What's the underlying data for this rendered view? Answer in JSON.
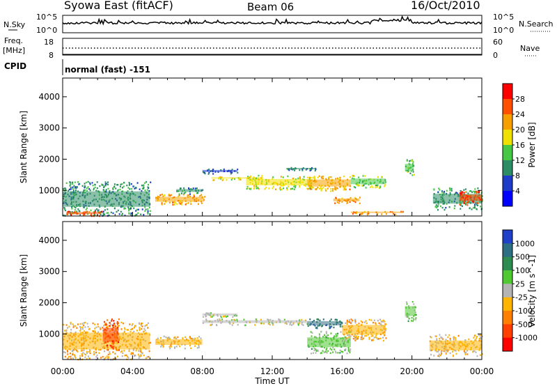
{
  "header": {
    "station": "Syowa East (fitACF)",
    "beam": "Beam 06",
    "date": "16/Oct/2010"
  },
  "noise_panel": {
    "left_label": "N.Sky",
    "right_label": "N.Search",
    "left_ticks": [
      "10^5",
      "10^0"
    ],
    "right_ticks": [
      "10^5",
      "10^0"
    ]
  },
  "freq_panel": {
    "left_label_line1": "Freq.",
    "left_label_line2": "[MHz]",
    "left_ticks": [
      "18",
      "8"
    ],
    "right_label": "Nave",
    "right_ticks": [
      "60",
      "0"
    ]
  },
  "cpid": {
    "label": "CPID",
    "value": "normal (fast) -151"
  },
  "power_colorbar": {
    "label": "Power [dB]",
    "ticks": [
      "28",
      "24",
      "20",
      "16",
      "12",
      "8",
      "4"
    ],
    "colors": [
      "#0000ff",
      "#1e3cc8",
      "#2c8c64",
      "#46c846",
      "#f0e000",
      "#f5a000",
      "#ff5000",
      "#ff0000"
    ]
  },
  "velocity_colorbar": {
    "label": "Velocity [m s^-1]",
    "ticks": [
      "1000",
      "500",
      "100",
      "25",
      "-25",
      "-100",
      "-500",
      "-1000"
    ],
    "colors": [
      "#2040c8",
      "#2e6e82",
      "#2e8c50",
      "#50c832",
      "#b4b4b4",
      "#ffb400",
      "#ff8000",
      "#ff4000",
      "#ff0000"
    ]
  },
  "axis": {
    "ylabel": "Slant Range [km]",
    "xlabel": "Time UT",
    "y_ticks": [
      "1000",
      "2000",
      "3000",
      "4000"
    ],
    "x_ticks": [
      "00:00",
      "04:00",
      "08:00",
      "12:00",
      "16:00",
      "20:00",
      "00:00"
    ]
  },
  "chart_data": [
    {
      "type": "heatmap",
      "title": "",
      "quantity": "Power [dB]",
      "xlabel": "",
      "ylabel": "Slant Range [km]",
      "xlim_hours": [
        0,
        24
      ],
      "ylim": [
        180,
        4600
      ],
      "color_scale": [
        0,
        30
      ],
      "regions": [
        {
          "t0": 0.0,
          "t1": 5.0,
          "r0": 200,
          "r1": 1300,
          "value": 10
        },
        {
          "t0": 0.2,
          "t1": 2.2,
          "r0": 200,
          "r1": 350,
          "value": 25
        },
        {
          "t0": 5.3,
          "t1": 8.1,
          "r0": 550,
          "r1": 900,
          "value": 20
        },
        {
          "t0": 6.5,
          "t1": 8.0,
          "r0": 900,
          "r1": 1100,
          "value": 9
        },
        {
          "t0": 8.0,
          "t1": 10.0,
          "r0": 1550,
          "r1": 1700,
          "value": 7
        },
        {
          "t0": 8.5,
          "t1": 11.5,
          "r0": 1350,
          "r1": 1450,
          "value": 18
        },
        {
          "t0": 10.5,
          "t1": 14.3,
          "r0": 1050,
          "r1": 1500,
          "value": 16
        },
        {
          "t0": 12.8,
          "t1": 14.5,
          "r0": 1650,
          "r1": 1750,
          "value": 8
        },
        {
          "t0": 14.0,
          "t1": 16.5,
          "r0": 1000,
          "r1": 1500,
          "value": 19
        },
        {
          "t0": 15.5,
          "t1": 17.0,
          "r0": 600,
          "r1": 800,
          "value": 22
        },
        {
          "t0": 16.5,
          "t1": 18.5,
          "r0": 1100,
          "r1": 1500,
          "value": 14
        },
        {
          "t0": 16.5,
          "t1": 19.5,
          "r0": 250,
          "r1": 350,
          "value": 22
        },
        {
          "t0": 19.6,
          "t1": 20.1,
          "r0": 1500,
          "r1": 2000,
          "value": 12
        },
        {
          "t0": 21.2,
          "t1": 24.0,
          "r0": 400,
          "r1": 1100,
          "value": 10
        },
        {
          "t0": 22.7,
          "t1": 24.0,
          "r0": 550,
          "r1": 1000,
          "value": 26
        }
      ]
    },
    {
      "type": "heatmap",
      "title": "",
      "quantity": "Velocity [m s^-1]",
      "xlabel": "Time UT",
      "ylabel": "Slant Range [km]",
      "xlim_hours": [
        0,
        24
      ],
      "ylim": [
        180,
        4600
      ],
      "color_scale": [
        -1000,
        1000
      ],
      "regions": [
        {
          "t0": 0.0,
          "t1": 5.0,
          "r0": 200,
          "r1": 1400,
          "value": -200
        },
        {
          "t0": 2.3,
          "t1": 3.2,
          "r0": 500,
          "r1": 1500,
          "value": -600
        },
        {
          "t0": 5.3,
          "t1": 8.0,
          "r0": 550,
          "r1": 950,
          "value": -150
        },
        {
          "t0": 8.0,
          "t1": 14.0,
          "r0": 1300,
          "r1": 1500,
          "value": 0
        },
        {
          "t0": 8.0,
          "t1": 10.0,
          "r0": 1550,
          "r1": 1700,
          "value": 50
        },
        {
          "t0": 14.0,
          "t1": 16.0,
          "r0": 1200,
          "r1": 1500,
          "value": 600
        },
        {
          "t0": 14.0,
          "t1": 16.5,
          "r0": 400,
          "r1": 1100,
          "value": 150
        },
        {
          "t0": 16.0,
          "t1": 18.5,
          "r0": 800,
          "r1": 1500,
          "value": -250
        },
        {
          "t0": 19.6,
          "t1": 20.2,
          "r0": 1400,
          "r1": 2100,
          "value": 150
        },
        {
          "t0": 21.0,
          "t1": 24.0,
          "r0": 300,
          "r1": 1000,
          "value": -150
        }
      ]
    }
  ]
}
